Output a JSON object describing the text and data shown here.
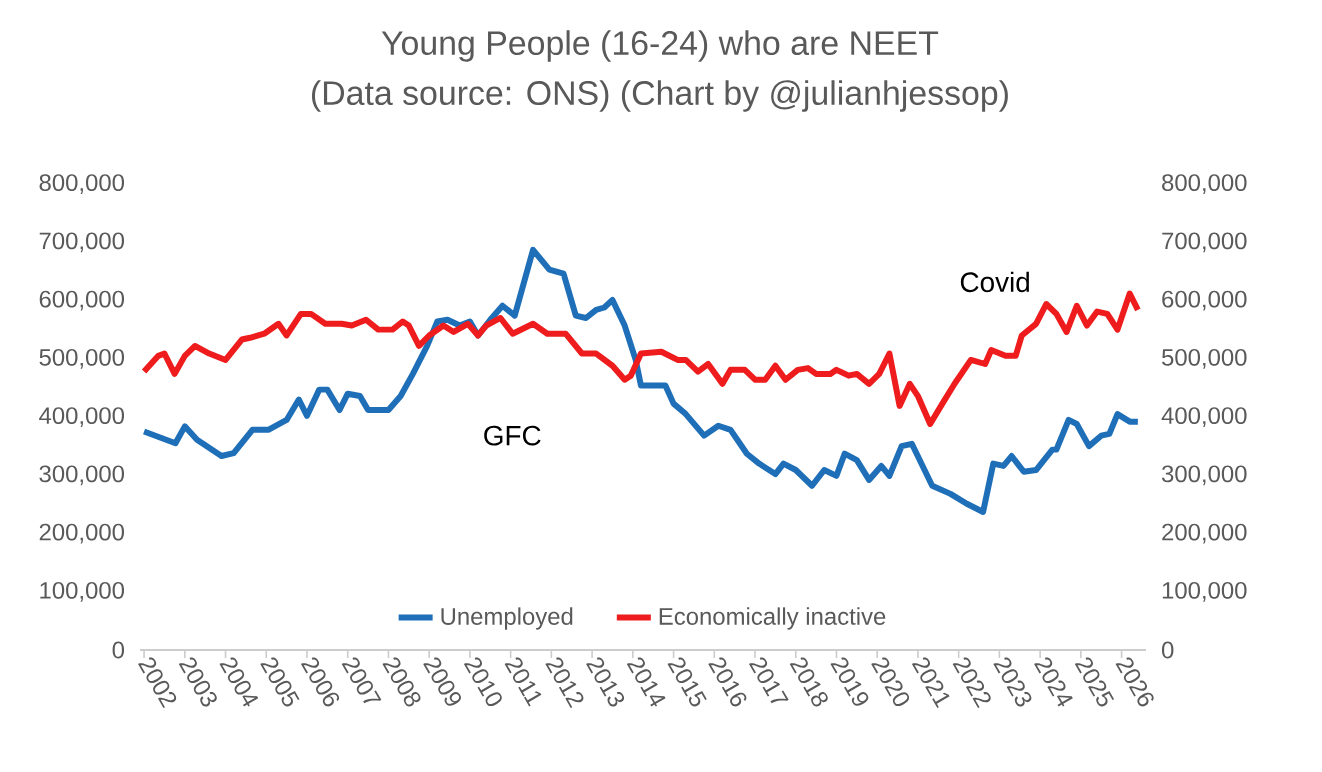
{
  "chart_data": {
    "type": "line",
    "title": "Young People (16-24) who are NEET",
    "subtitle": "(Data source: ONS) (Chart by @julianhjessop)",
    "xlim": [
      2001.9,
      2026.6
    ],
    "xticks": [
      2002,
      2003,
      2004,
      2005,
      2006,
      2007,
      2008,
      2009,
      2010,
      2011,
      2012,
      2013,
      2014,
      2015,
      2016,
      2017,
      2018,
      2019,
      2020,
      2021,
      2022,
      2023,
      2024,
      2025,
      2026
    ],
    "ylim": [
      0,
      800000
    ],
    "yticks": [
      0,
      {
        "value": 100000,
        "label": "100,000"
      },
      {
        "value": 200000,
        "label": "200,000"
      },
      {
        "value": 300000,
        "label": "300,000"
      },
      {
        "value": 400000,
        "label": "400,000"
      },
      {
        "value": 500000,
        "label": "500,000"
      },
      {
        "value": 600000,
        "label": "600,000"
      },
      {
        "value": 700000,
        "label": "700,000"
      },
      {
        "value": 800000,
        "label": "800,000"
      }
    ],
    "y2lim": [
      0,
      800000
    ],
    "y2ticks": [
      0,
      {
        "value": 100000,
        "label": "100,000"
      },
      {
        "value": 200000,
        "label": "200,000"
      },
      {
        "value": 300000,
        "label": "300,000"
      },
      {
        "value": 400000,
        "label": "400,000"
      },
      {
        "value": 500000,
        "label": "500,000"
      },
      {
        "value": 600000,
        "label": "600,000"
      },
      {
        "value": 700000,
        "label": "700,000"
      },
      {
        "value": 800000,
        "label": "800,000"
      }
    ],
    "legend": "bottom",
    "grid": false,
    "marker": "none",
    "line_style": "solid",
    "annotations": [
      "GFC",
      "Covid"
    ],
    "series": [
      {
        "name": "Unemployed",
        "color": "#1f6fb8",
        "x": [
          2002.0,
          2002.77,
          2003.0,
          2003.3,
          2003.9,
          2004.2,
          2004.66,
          2005.05,
          2005.5,
          2005.8,
          2006.0,
          2006.3,
          2006.5,
          2006.8,
          2007.0,
          2007.3,
          2007.5,
          2008.0,
          2008.3,
          2008.6,
          2008.95,
          2009.2,
          2009.45,
          2009.75,
          2010.0,
          2010.2,
          2010.5,
          2010.8,
          2011.1,
          2011.55,
          2011.95,
          2012.3,
          2012.6,
          2012.85,
          2013.1,
          2013.3,
          2013.5,
          2013.8,
          2014.07,
          2014.2,
          2014.8,
          2015.0,
          2015.3,
          2015.75,
          2016.1,
          2016.4,
          2016.8,
          2017.1,
          2017.5,
          2017.7,
          2018.0,
          2018.4,
          2018.7,
          2019.0,
          2019.2,
          2019.5,
          2019.8,
          2020.1,
          2020.3,
          2020.6,
          2020.85,
          2021.35,
          2021.8,
          2022.2,
          2022.6,
          2022.85,
          2023.1,
          2023.3,
          2023.6,
          2023.9,
          2024.3,
          2024.4,
          2024.7,
          2024.9,
          2025.2,
          2025.5,
          2025.7,
          2025.9,
          2026.2,
          2026.4
        ],
        "values": [
          375000,
          355000,
          384000,
          361000,
          333000,
          338000,
          378000,
          378000,
          395000,
          430000,
          402000,
          447000,
          447000,
          412000,
          440000,
          436000,
          412000,
          412000,
          436000,
          474000,
          522000,
          564000,
          567000,
          557000,
          564000,
          540000,
          567000,
          591000,
          574000,
          687000,
          653000,
          646000,
          574000,
          570000,
          584000,
          588000,
          601000,
          557000,
          498000,
          454000,
          454000,
          423000,
          405000,
          368000,
          385000,
          378000,
          337000,
          320000,
          302000,
          320000,
          309000,
          282000,
          309000,
          299000,
          337000,
          326000,
          292000,
          316000,
          299000,
          350000,
          354000,
          282000,
          268000,
          251000,
          237000,
          320000,
          316000,
          333000,
          306000,
          309000,
          344000,
          344000,
          395000,
          388000,
          350000,
          368000,
          371000,
          405000,
          392000,
          392000
        ]
      },
      {
        "name": "Economically inactive",
        "color": "#ee1c1c",
        "x": [
          2002.0,
          2002.35,
          2002.5,
          2002.75,
          2003.0,
          2003.25,
          2003.6,
          2004.0,
          2004.4,
          2004.6,
          2004.95,
          2005.3,
          2005.5,
          2005.85,
          2006.1,
          2006.45,
          2006.85,
          2007.1,
          2007.45,
          2007.75,
          2008.1,
          2008.35,
          2008.5,
          2008.75,
          2009.0,
          2009.35,
          2009.6,
          2009.95,
          2010.2,
          2010.4,
          2010.75,
          2011.05,
          2011.55,
          2011.9,
          2012.35,
          2012.75,
          2013.1,
          2013.5,
          2013.8,
          2013.95,
          2014.2,
          2014.7,
          2015.1,
          2015.3,
          2015.6,
          2015.85,
          2016.2,
          2016.4,
          2016.75,
          2017.0,
          2017.25,
          2017.5,
          2017.75,
          2018.05,
          2018.3,
          2018.5,
          2018.85,
          2019.0,
          2019.3,
          2019.5,
          2019.8,
          2020.05,
          2020.3,
          2020.55,
          2020.8,
          2021.0,
          2021.3,
          2021.6,
          2021.9,
          2022.3,
          2022.65,
          2022.8,
          2023.15,
          2023.4,
          2023.55,
          2023.9,
          2024.15,
          2024.4,
          2024.65,
          2024.9,
          2025.15,
          2025.4,
          2025.65,
          2025.9,
          2026.2,
          2026.4
        ],
        "values": [
          478000,
          505000,
          509000,
          474000,
          505000,
          522000,
          509000,
          498000,
          533000,
          536000,
          543000,
          560000,
          540000,
          577000,
          577000,
          560000,
          560000,
          557000,
          567000,
          550000,
          550000,
          564000,
          557000,
          522000,
          540000,
          557000,
          546000,
          560000,
          540000,
          557000,
          570000,
          543000,
          560000,
          543000,
          543000,
          509000,
          509000,
          488000,
          464000,
          471000,
          509000,
          512000,
          498000,
          498000,
          478000,
          491000,
          457000,
          481000,
          481000,
          464000,
          464000,
          488000,
          464000,
          481000,
          484000,
          474000,
          474000,
          481000,
          471000,
          474000,
          457000,
          474000,
          509000,
          419000,
          457000,
          436000,
          388000,
          423000,
          457000,
          498000,
          491000,
          515000,
          505000,
          505000,
          540000,
          560000,
          594000,
          577000,
          546000,
          591000,
          557000,
          581000,
          577000,
          550000,
          612000,
          584000
        ]
      }
    ]
  }
}
